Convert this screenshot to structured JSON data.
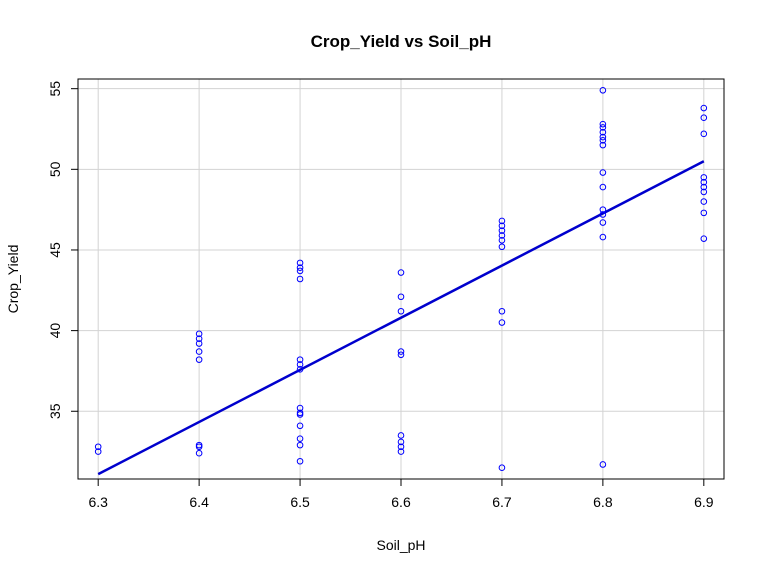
{
  "chart_data": {
    "type": "scatter",
    "title": "Crop_Yield vs Soil_pH",
    "xlabel": "Soil_pH",
    "ylabel": "Crop_Yield",
    "xlim": [
      6.28,
      6.92
    ],
    "ylim": [
      30.8,
      55.6
    ],
    "xticks": [
      6.3,
      6.4,
      6.5,
      6.6,
      6.7,
      6.8,
      6.9
    ],
    "yticks": [
      35,
      40,
      45,
      50,
      55
    ],
    "grid": true,
    "point_color": "#0000ff",
    "line_color": "#0000cd",
    "points": [
      {
        "x": 6.3,
        "y": 32.8
      },
      {
        "x": 6.3,
        "y": 32.5
      },
      {
        "x": 6.4,
        "y": 39.8
      },
      {
        "x": 6.4,
        "y": 39.5
      },
      {
        "x": 6.4,
        "y": 39.2
      },
      {
        "x": 6.4,
        "y": 38.7
      },
      {
        "x": 6.4,
        "y": 38.2
      },
      {
        "x": 6.4,
        "y": 32.9
      },
      {
        "x": 6.4,
        "y": 32.8
      },
      {
        "x": 6.4,
        "y": 32.4
      },
      {
        "x": 6.5,
        "y": 44.2
      },
      {
        "x": 6.5,
        "y": 43.9
      },
      {
        "x": 6.5,
        "y": 43.7
      },
      {
        "x": 6.5,
        "y": 43.2
      },
      {
        "x": 6.5,
        "y": 38.2
      },
      {
        "x": 6.5,
        "y": 37.9
      },
      {
        "x": 6.5,
        "y": 37.6
      },
      {
        "x": 6.5,
        "y": 35.2
      },
      {
        "x": 6.5,
        "y": 34.9
      },
      {
        "x": 6.5,
        "y": 34.8
      },
      {
        "x": 6.5,
        "y": 34.1
      },
      {
        "x": 6.5,
        "y": 33.3
      },
      {
        "x": 6.5,
        "y": 32.9
      },
      {
        "x": 6.5,
        "y": 31.9
      },
      {
        "x": 6.6,
        "y": 43.6
      },
      {
        "x": 6.6,
        "y": 42.1
      },
      {
        "x": 6.6,
        "y": 41.2
      },
      {
        "x": 6.6,
        "y": 38.7
      },
      {
        "x": 6.6,
        "y": 38.5
      },
      {
        "x": 6.6,
        "y": 33.5
      },
      {
        "x": 6.6,
        "y": 33.1
      },
      {
        "x": 6.6,
        "y": 32.8
      },
      {
        "x": 6.6,
        "y": 32.5
      },
      {
        "x": 6.7,
        "y": 46.8
      },
      {
        "x": 6.7,
        "y": 46.5
      },
      {
        "x": 6.7,
        "y": 46.2
      },
      {
        "x": 6.7,
        "y": 45.9
      },
      {
        "x": 6.7,
        "y": 45.6
      },
      {
        "x": 6.7,
        "y": 45.2
      },
      {
        "x": 6.7,
        "y": 41.2
      },
      {
        "x": 6.7,
        "y": 40.5
      },
      {
        "x": 6.7,
        "y": 31.5
      },
      {
        "x": 6.8,
        "y": 54.9
      },
      {
        "x": 6.8,
        "y": 52.8
      },
      {
        "x": 6.8,
        "y": 52.6
      },
      {
        "x": 6.8,
        "y": 52.3
      },
      {
        "x": 6.8,
        "y": 52.0
      },
      {
        "x": 6.8,
        "y": 51.8
      },
      {
        "x": 6.8,
        "y": 51.5
      },
      {
        "x": 6.8,
        "y": 49.8
      },
      {
        "x": 6.8,
        "y": 48.9
      },
      {
        "x": 6.8,
        "y": 47.5
      },
      {
        "x": 6.8,
        "y": 47.2
      },
      {
        "x": 6.8,
        "y": 46.7
      },
      {
        "x": 6.8,
        "y": 45.8
      },
      {
        "x": 6.8,
        "y": 31.7
      },
      {
        "x": 6.9,
        "y": 53.8
      },
      {
        "x": 6.9,
        "y": 53.2
      },
      {
        "x": 6.9,
        "y": 52.2
      },
      {
        "x": 6.9,
        "y": 49.5
      },
      {
        "x": 6.9,
        "y": 49.2
      },
      {
        "x": 6.9,
        "y": 48.9
      },
      {
        "x": 6.9,
        "y": 48.6
      },
      {
        "x": 6.9,
        "y": 48.0
      },
      {
        "x": 6.9,
        "y": 47.3
      },
      {
        "x": 6.9,
        "y": 45.7
      }
    ],
    "fit_line": {
      "x": [
        6.3,
        6.9
      ],
      "y": [
        31.1,
        50.5
      ]
    }
  }
}
